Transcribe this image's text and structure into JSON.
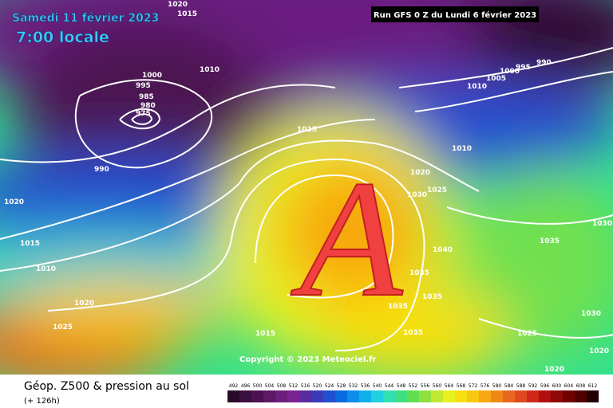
{
  "header": {
    "date": "Samedi 11 février 2023",
    "time": "7:00 locale",
    "run": "Run GFS 0 Z du Lundi 6 février 2023"
  },
  "map": {
    "symbol": "A",
    "copyright": "Copyright © 2023 Meteociel.fr",
    "isobar_labels": [
      "1020",
      "1015",
      "1000",
      "1010",
      "995",
      "985",
      "980",
      "975",
      "990",
      "1020",
      "1015",
      "1010",
      "1020",
      "1025",
      "1015",
      "1015",
      "1020",
      "1025",
      "1030",
      "1040",
      "1035",
      "1035",
      "1035",
      "1035",
      "1035",
      "1030",
      "1030",
      "1025",
      "1020",
      "1020",
      "1010",
      "1010",
      "1005",
      "1000",
      "995",
      "990"
    ]
  },
  "footer": {
    "title": "Géop. Z500 & pression au sol",
    "lead": "(+ 126h)"
  },
  "colorbar": {
    "labels": [
      492,
      496,
      500,
      504,
      508,
      512,
      516,
      520,
      524,
      528,
      532,
      536,
      540,
      544,
      548,
      552,
      556,
      560,
      564,
      568,
      572,
      576,
      580,
      584,
      588,
      592,
      596,
      600,
      604,
      608,
      612
    ],
    "colors": [
      "#2a0a2a",
      "#3b0f3f",
      "#4c1250",
      "#5c1a66",
      "#6e1f7c",
      "#7b2290",
      "#5a2aa0",
      "#3a3ab8",
      "#2050d0",
      "#0a6ae0",
      "#0a90e8",
      "#10b0e8",
      "#20d0e0",
      "#30e0b0",
      "#40e080",
      "#60e050",
      "#90e040",
      "#c0e830",
      "#e8f020",
      "#f8e010",
      "#f8c810",
      "#f8a810",
      "#f08818",
      "#e86820",
      "#e04820",
      "#d02818",
      "#b01010",
      "#900808",
      "#700000",
      "#500000",
      "#200000"
    ]
  }
}
